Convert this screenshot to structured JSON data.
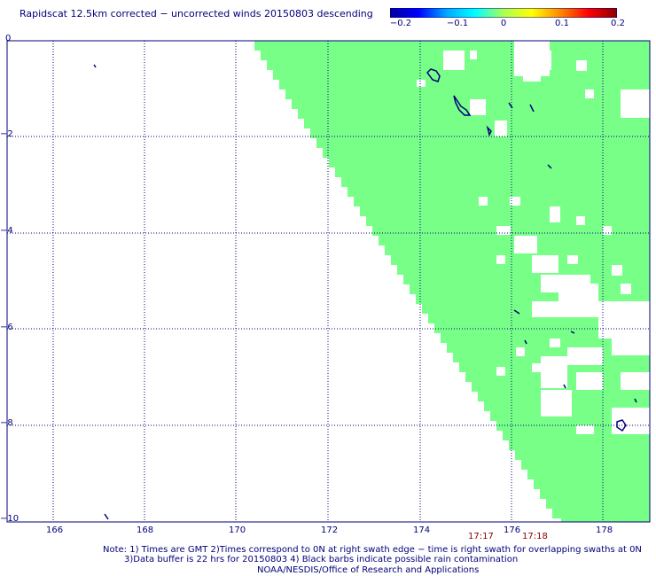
{
  "title": "Rapidscat 12.5km corrected − uncorrected winds 20150803 descending",
  "colorbar": {
    "ticks": [
      "−0.2",
      "−0.1",
      "0",
      "0.1",
      "0.2"
    ],
    "range": [
      -0.2,
      0.2
    ],
    "stops": [
      "#00009a",
      "#0000ff",
      "#00aaff",
      "#00ffff",
      "#aaff55",
      "#ffff00",
      "#ff8800",
      "#ff0000",
      "#8b0000"
    ]
  },
  "axes": {
    "x_ticks": [
      "166",
      "168",
      "170",
      "172",
      "174",
      "176",
      "178"
    ],
    "y_ticks": [
      "0",
      "−2",
      "−4",
      "−6",
      "−8",
      "−10"
    ],
    "lon_range": [
      166,
      179
    ],
    "lat_range": [
      0,
      -10
    ]
  },
  "swath_times": [
    "17:17",
    "17:18"
  ],
  "notes": {
    "line1": "Note: 1) Times are GMT 2)Times correspond to 0N at right swath edge − time is right swath for overlapping swaths at 0N",
    "line2": "3)Data buffer is 22 hrs for 20150803 4) Black barbs indicate possible rain contamination",
    "line3": "NOAA/NESDIS/Office of Research and Applications"
  },
  "colors": {
    "swath": "#77ff88",
    "grid": "#00007a",
    "coast": "#00007a",
    "time": "#8b0000"
  }
}
